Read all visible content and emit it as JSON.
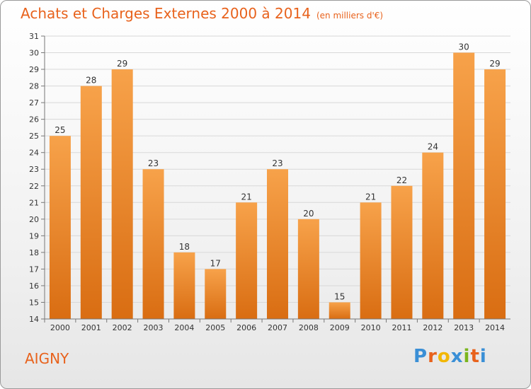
{
  "chart_data": {
    "type": "bar",
    "title": "Achats et Charges Externes 2000 à 2014",
    "subtitle": "(en milliers d'€)",
    "categories": [
      "2000",
      "2001",
      "2002",
      "2003",
      "2004",
      "2005",
      "2006",
      "2007",
      "2008",
      "2009",
      "2010",
      "2011",
      "2012",
      "2013",
      "2014"
    ],
    "values": [
      25,
      28,
      29,
      23,
      18,
      17,
      21,
      23,
      20,
      15,
      21,
      22,
      24,
      30,
      29
    ],
    "ylim": [
      14,
      31
    ],
    "yticks": [
      14,
      15,
      16,
      17,
      18,
      19,
      20,
      21,
      22,
      23,
      24,
      25,
      26,
      27,
      28,
      29,
      30,
      31
    ],
    "grid": true,
    "bar_color_light": "#f7a24a",
    "bar_color_dark": "#d96d12"
  },
  "commune": "AIGNY",
  "logo": {
    "text": "Proxiti",
    "colors": [
      "#3a8fd6",
      "#e8621c",
      "#f2b705",
      "#3a8fd6",
      "#7ab51d",
      "#e8621c",
      "#3a8fd6"
    ]
  }
}
